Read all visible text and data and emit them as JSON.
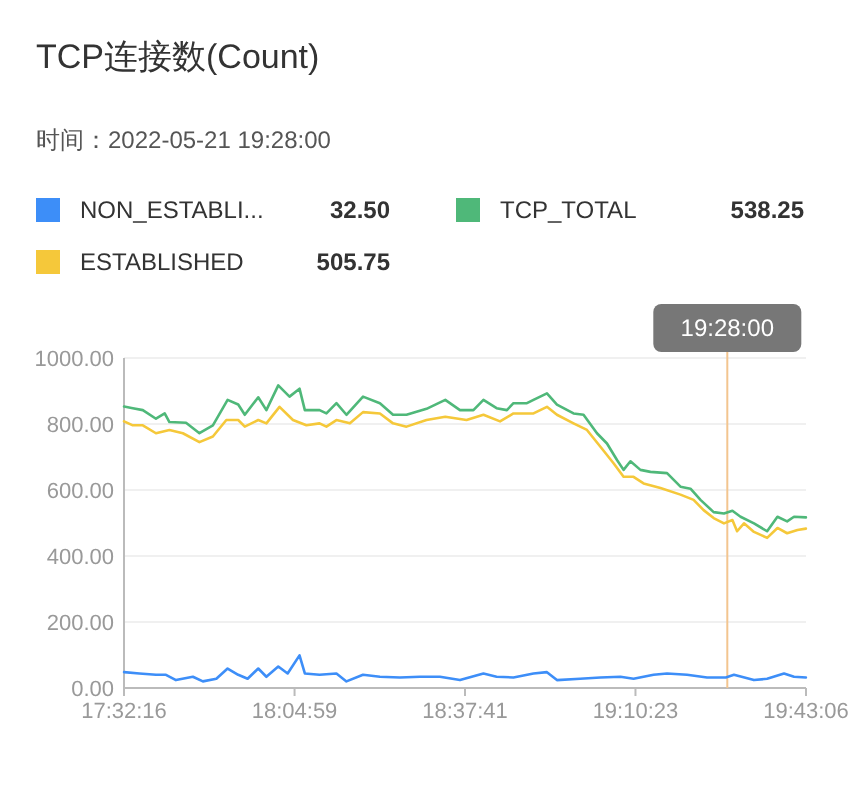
{
  "chart_data": {
    "type": "line",
    "title": "TCP连接数(Count)",
    "subtitle": "时间：2022-05-21 19:28:00",
    "legend": "top",
    "grid": "y",
    "marker": "none",
    "line_style": "solid",
    "xlim": [
      17.5378,
      19.7183
    ],
    "xticks": [
      {
        "value": 17.5378,
        "label": "17:32:16"
      },
      {
        "value": 18.0831,
        "label": "18:04:59"
      },
      {
        "value": 18.6281,
        "label": "18:37:41"
      },
      {
        "value": 19.1731,
        "label": "19:10:23"
      },
      {
        "value": 19.7183,
        "label": "19:43:06"
      }
    ],
    "ylim": [
      0,
      1000
    ],
    "yticks": [
      {
        "value": 0,
        "label": "0.00"
      },
      {
        "value": 200,
        "label": "200.00"
      },
      {
        "value": 400,
        "label": "400.00"
      },
      {
        "value": 600,
        "label": "600.00"
      },
      {
        "value": 800,
        "label": "800.00"
      },
      {
        "value": 1000,
        "label": "1000.00"
      }
    ],
    "ref_lines": [
      {
        "axis": "x",
        "value": 19.4667,
        "label": "19:28:00",
        "color": "#f3c58f"
      }
    ],
    "annotations": [
      "32.50",
      "538.25",
      "505.75"
    ],
    "series": [
      {
        "name": "NON_ESTABLI...",
        "color": "#3d8ef8",
        "x": [
          17.538,
          17.587,
          17.64,
          17.672,
          17.704,
          17.758,
          17.79,
          17.833,
          17.869,
          17.903,
          17.933,
          17.967,
          17.993,
          18.031,
          18.061,
          18.099,
          18.116,
          18.163,
          18.217,
          18.249,
          18.302,
          18.356,
          18.42,
          18.484,
          18.548,
          18.612,
          18.687,
          18.729,
          18.783,
          18.847,
          18.89,
          18.922,
          18.996,
          19.061,
          19.125,
          19.167,
          19.231,
          19.274,
          19.338,
          19.402,
          19.462,
          19.488,
          19.552,
          19.594,
          19.648,
          19.68,
          19.718
        ],
        "values": [
          48,
          44,
          40,
          40,
          24,
          34,
          20,
          28,
          59,
          40,
          28,
          59,
          34,
          65,
          44,
          99,
          44,
          40,
          44,
          20,
          40,
          34,
          32,
          34,
          34,
          24,
          44,
          34,
          32,
          44,
          48,
          24,
          28,
          32,
          34,
          28,
          40,
          44,
          40,
          32,
          32,
          40,
          24,
          28,
          44,
          34,
          32
        ]
      },
      {
        "name": "TCP_TOTAL",
        "color": "#4fb879",
        "x": [
          17.538,
          17.566,
          17.598,
          17.64,
          17.668,
          17.683,
          17.736,
          17.779,
          17.822,
          17.869,
          17.903,
          17.924,
          17.967,
          17.993,
          18.031,
          18.067,
          18.099,
          18.116,
          18.163,
          18.185,
          18.217,
          18.249,
          18.302,
          18.356,
          18.398,
          18.441,
          18.505,
          18.565,
          18.612,
          18.655,
          18.687,
          18.729,
          18.762,
          18.783,
          18.826,
          18.847,
          18.89,
          18.922,
          18.975,
          19.007,
          19.05,
          19.082,
          19.114,
          19.135,
          19.157,
          19.189,
          19.221,
          19.274,
          19.317,
          19.349,
          19.381,
          19.423,
          19.456,
          19.483,
          19.509,
          19.552,
          19.594,
          19.627,
          19.658,
          19.68,
          19.718
        ],
        "values": [
          853,
          848,
          842,
          816,
          832,
          806,
          804,
          772,
          796,
          873,
          859,
          828,
          881,
          842,
          917,
          883,
          907,
          842,
          842,
          832,
          863,
          828,
          883,
          863,
          828,
          828,
          846,
          873,
          842,
          842,
          873,
          848,
          842,
          863,
          863,
          873,
          893,
          859,
          832,
          828,
          772,
          741,
          691,
          661,
          687,
          661,
          655,
          651,
          610,
          604,
          570,
          533,
          529,
          537,
          519,
          499,
          475,
          519,
          505,
          519,
          517
        ]
      },
      {
        "name": "ESTABLISHED",
        "color": "#f5c83a",
        "x": [
          17.538,
          17.566,
          17.598,
          17.64,
          17.683,
          17.726,
          17.779,
          17.822,
          17.865,
          17.903,
          17.924,
          17.967,
          17.993,
          18.035,
          18.078,
          18.121,
          18.163,
          18.185,
          18.217,
          18.26,
          18.302,
          18.356,
          18.398,
          18.441,
          18.505,
          18.565,
          18.633,
          18.687,
          18.74,
          18.783,
          18.847,
          18.89,
          18.922,
          18.975,
          19.018,
          19.061,
          19.103,
          19.135,
          19.167,
          19.199,
          19.253,
          19.317,
          19.359,
          19.391,
          19.423,
          19.456,
          19.483,
          19.498,
          19.52,
          19.552,
          19.594,
          19.627,
          19.658,
          19.691,
          19.718
        ],
        "values": [
          808,
          796,
          796,
          772,
          782,
          772,
          745,
          762,
          812,
          812,
          792,
          812,
          802,
          852,
          812,
          796,
          802,
          792,
          812,
          802,
          836,
          832,
          802,
          792,
          812,
          822,
          812,
          828,
          808,
          832,
          832,
          852,
          828,
          802,
          782,
          731,
          681,
          640,
          640,
          620,
          606,
          586,
          570,
          539,
          515,
          499,
          509,
          475,
          499,
          473,
          455,
          485,
          469,
          479,
          483
        ]
      }
    ]
  }
}
